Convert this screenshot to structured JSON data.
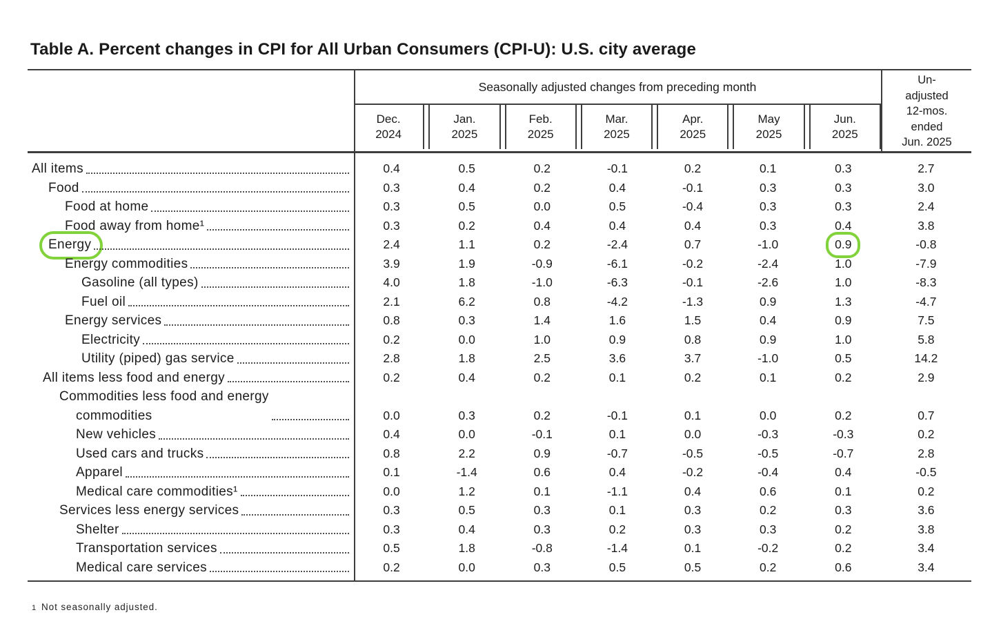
{
  "title": "Table A. Percent changes in CPI for All Urban Consumers (CPI-U): U.S. city average",
  "table": {
    "span_header": "Seasonally adjusted changes from preceding month",
    "columns": [
      "Dec. 2024",
      "Jan. 2025",
      "Feb. 2025",
      "Mar. 2025",
      "Apr. 2025",
      "May 2025",
      "Jun. 2025"
    ],
    "last_column_lines": [
      "Un-",
      "adjusted",
      "12-mos.",
      "ended",
      "Jun. 2025"
    ],
    "rows": [
      {
        "label": "All items",
        "indent": 0,
        "values": [
          "0.4",
          "0.5",
          "0.2",
          "-0.1",
          "0.2",
          "0.1",
          "0.3",
          "2.7"
        ]
      },
      {
        "label": "Food",
        "indent": 1,
        "values": [
          "0.3",
          "0.4",
          "0.2",
          "0.4",
          "-0.1",
          "0.3",
          "0.3",
          "3.0"
        ]
      },
      {
        "label": "Food at home",
        "indent": 2,
        "values": [
          "0.3",
          "0.5",
          "0.0",
          "0.5",
          "-0.4",
          "0.3",
          "0.3",
          "2.4"
        ]
      },
      {
        "label": "Food away from home¹",
        "indent": 2,
        "values": [
          "0.3",
          "0.2",
          "0.4",
          "0.4",
          "0.4",
          "0.3",
          "0.4",
          "3.8"
        ]
      },
      {
        "label": "Energy",
        "indent": 1,
        "values": [
          "2.4",
          "1.1",
          "0.2",
          "-2.4",
          "0.7",
          "-1.0",
          "0.9",
          "-0.8"
        ]
      },
      {
        "label": "Energy commodities",
        "indent": 2,
        "values": [
          "3.9",
          "1.9",
          "-0.9",
          "-6.1",
          "-0.2",
          "-2.4",
          "1.0",
          "-7.9"
        ]
      },
      {
        "label": "Gasoline (all types)",
        "indent": 3,
        "values": [
          "4.0",
          "1.8",
          "-1.0",
          "-6.3",
          "-0.1",
          "-2.6",
          "1.0",
          "-8.3"
        ]
      },
      {
        "label": "Fuel oil",
        "indent": 3,
        "values": [
          "2.1",
          "6.2",
          "0.8",
          "-4.2",
          "-1.3",
          "0.9",
          "1.3",
          "-4.7"
        ]
      },
      {
        "label": "Energy services",
        "indent": 2,
        "values": [
          "0.8",
          "0.3",
          "1.4",
          "1.6",
          "1.5",
          "0.4",
          "0.9",
          "7.5"
        ]
      },
      {
        "label": "Electricity",
        "indent": 3,
        "values": [
          "0.2",
          "0.0",
          "1.0",
          "0.9",
          "0.8",
          "0.9",
          "1.0",
          "5.8"
        ]
      },
      {
        "label": "Utility (piped) gas service",
        "indent": 3,
        "values": [
          "2.8",
          "1.8",
          "2.5",
          "3.6",
          "3.7",
          "-1.0",
          "0.5",
          "14.2"
        ]
      },
      {
        "label": "All items less food and energy",
        "indent": 0,
        "values": [
          "0.2",
          "0.4",
          "0.2",
          "0.1",
          "0.2",
          "0.1",
          "0.2",
          "2.9"
        ]
      },
      {
        "label": "Commodities less food and energy\ncommodities",
        "indent": 1,
        "values": [
          "0.0",
          "0.3",
          "0.2",
          "-0.1",
          "0.1",
          "0.0",
          "0.2",
          "0.7"
        ]
      },
      {
        "label": "New vehicles",
        "indent": 2,
        "values": [
          "0.4",
          "0.0",
          "-0.1",
          "0.1",
          "0.0",
          "-0.3",
          "-0.3",
          "0.2"
        ]
      },
      {
        "label": "Used cars and trucks",
        "indent": 2,
        "values": [
          "0.8",
          "2.2",
          "0.9",
          "-0.7",
          "-0.5",
          "-0.5",
          "-0.7",
          "2.8"
        ]
      },
      {
        "label": "Apparel",
        "indent": 2,
        "values": [
          "0.1",
          "-1.4",
          "0.6",
          "0.4",
          "-0.2",
          "-0.4",
          "0.4",
          "-0.5"
        ]
      },
      {
        "label": "Medical care commodities¹",
        "indent": 2,
        "values": [
          "0.0",
          "1.2",
          "0.1",
          "-1.1",
          "0.4",
          "0.6",
          "0.1",
          "0.2"
        ]
      },
      {
        "label": "Services less energy services",
        "indent": 1,
        "values": [
          "0.3",
          "0.5",
          "0.3",
          "0.1",
          "0.3",
          "0.2",
          "0.3",
          "3.6"
        ]
      },
      {
        "label": "Shelter",
        "indent": 2,
        "values": [
          "0.3",
          "0.4",
          "0.3",
          "0.2",
          "0.3",
          "0.3",
          "0.2",
          "3.8"
        ]
      },
      {
        "label": "Transportation services",
        "indent": 2,
        "values": [
          "0.5",
          "1.8",
          "-0.8",
          "-1.4",
          "0.1",
          "-0.2",
          "0.2",
          "3.4"
        ]
      },
      {
        "label": "Medical care services",
        "indent": 2,
        "values": [
          "0.2",
          "0.0",
          "0.3",
          "0.5",
          "0.5",
          "0.2",
          "0.6",
          "3.4"
        ]
      }
    ],
    "footnote": {
      "marker": "1",
      "text": "Not seasonally adjusted."
    }
  },
  "annotations": {
    "highlight_color": "#82d23c",
    "row_label_circled": "Energy",
    "value_circled": {
      "row": "Energy",
      "column": "Jun. 2025",
      "value": "0.9"
    }
  }
}
